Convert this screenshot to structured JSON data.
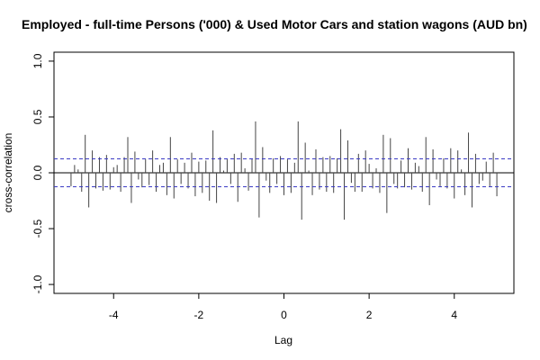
{
  "chart_data": {
    "type": "ccf",
    "title": "Employed - full-time Persons ('000) & Used Motor Cars and station wagons (AUD bn)",
    "xlabel": "Lag",
    "ylabel": "cross-correlation",
    "x": [
      -5,
      -4.9167,
      -4.8333,
      -4.75,
      -4.6667,
      -4.5833,
      -4.5,
      -4.4167,
      -4.3333,
      -4.25,
      -4.1667,
      -4.0833,
      -4,
      -3.9167,
      -3.8333,
      -3.75,
      -3.6667,
      -3.5833,
      -3.5,
      -3.4167,
      -3.3333,
      -3.25,
      -3.1667,
      -3.0833,
      -3,
      -2.9167,
      -2.8333,
      -2.75,
      -2.6667,
      -2.5833,
      -2.5,
      -2.4167,
      -2.3333,
      -2.25,
      -2.1667,
      -2.0833,
      -2,
      -1.9167,
      -1.8333,
      -1.75,
      -1.6667,
      -1.5833,
      -1.5,
      -1.4167,
      -1.3333,
      -1.25,
      -1.1667,
      -1.0833,
      -1,
      -0.9167,
      -0.8333,
      -0.75,
      -0.6667,
      -0.5833,
      -0.5,
      -0.4167,
      -0.3333,
      -0.25,
      -0.1667,
      -0.0833,
      0,
      0.0833,
      0.1667,
      0.25,
      0.3333,
      0.4167,
      0.5,
      0.5833,
      0.6667,
      0.75,
      0.8333,
      0.9167,
      1,
      1.0833,
      1.1667,
      1.25,
      1.3333,
      1.4167,
      1.5,
      1.5833,
      1.6667,
      1.75,
      1.8333,
      1.9167,
      2,
      2.0833,
      2.1667,
      2.25,
      2.3333,
      2.4167,
      2.5,
      2.5833,
      2.6667,
      2.75,
      2.8333,
      2.9167,
      3,
      3.0833,
      3.1667,
      3.25,
      3.3333,
      3.4167,
      3.5,
      3.5833,
      3.6667,
      3.75,
      3.8333,
      3.9167,
      4,
      4.0833,
      4.1667,
      4.25,
      4.3333,
      4.4167,
      4.5,
      4.5833,
      4.6667,
      4.75,
      4.8333,
      4.9167,
      5
    ],
    "values": [
      -0.12,
      0.07,
      0.03,
      -0.17,
      0.34,
      -0.31,
      0.2,
      -0.14,
      0.14,
      -0.16,
      0.16,
      -0.15,
      0.05,
      0.07,
      -0.17,
      0.14,
      0.32,
      -0.27,
      0.19,
      -0.06,
      -0.13,
      0.12,
      -0.11,
      0.2,
      -0.17,
      0.07,
      0.09,
      -0.2,
      0.32,
      -0.23,
      0.12,
      -0.1,
      0.09,
      -0.14,
      0.18,
      -0.21,
      0.1,
      -0.18,
      0.11,
      -0.25,
      0.38,
      -0.27,
      0.14,
      0.02,
      0.12,
      -0.1,
      0.17,
      -0.26,
      0.18,
      0.04,
      -0.16,
      0.13,
      0.46,
      -0.4,
      0.23,
      -0.07,
      -0.18,
      0.13,
      -0.1,
      0.15,
      -0.2,
      0.12,
      -0.18,
      0.09,
      0.46,
      -0.42,
      0.27,
      0.02,
      -0.2,
      0.21,
      -0.15,
      0.14,
      -0.17,
      0.15,
      -0.18,
      0.13,
      0.39,
      -0.42,
      0.29,
      -0.09,
      -0.17,
      0.17,
      -0.17,
      0.2,
      0.08,
      -0.14,
      0.04,
      -0.18,
      0.34,
      -0.36,
      0.31,
      -0.1,
      -0.14,
      0.11,
      -0.13,
      0.22,
      -0.15,
      0.09,
      0.06,
      -0.17,
      0.32,
      -0.29,
      0.21,
      -0.06,
      -0.12,
      0.13,
      -0.14,
      0.22,
      -0.23,
      0.2,
      0.03,
      -0.2,
      0.36,
      -0.31,
      0.17,
      -0.1,
      -0.07,
      0.1,
      -0.12,
      0.18,
      -0.21
    ],
    "color": "#444444",
    "confidence_bound": 0.125,
    "confidence_color": "#3b3bc4",
    "xlim": [
      -5.4,
      5.4
    ],
    "ylim": [
      -1.08,
      1.08
    ],
    "xticks": [
      -4,
      -2,
      0,
      2,
      4
    ],
    "yticks": [
      {
        "value": -1,
        "label": "-1.0"
      },
      {
        "value": -0.5,
        "label": "-0.5"
      },
      {
        "value": 0,
        "label": "0.0"
      },
      {
        "value": 0.5,
        "label": "0.5"
      },
      {
        "value": 1,
        "label": "1.0"
      }
    ]
  }
}
